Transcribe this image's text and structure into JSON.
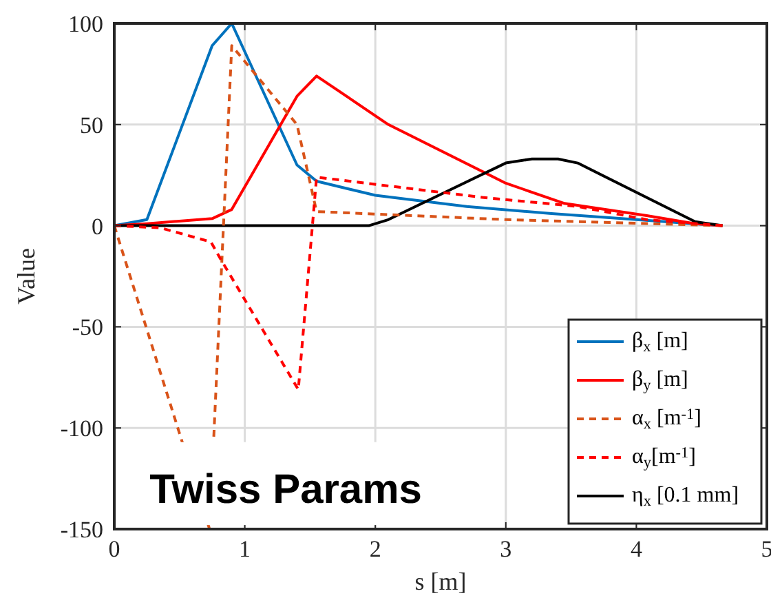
{
  "chart_data": {
    "type": "line",
    "xlabel": "s [m]",
    "ylabel": "Value",
    "annotations": [
      "Twiss Params"
    ],
    "xlim": [
      0,
      5
    ],
    "xticks": [
      0,
      1,
      2,
      3,
      4,
      5
    ],
    "ylim": [
      -150,
      100
    ],
    "yticks": [
      -150,
      -100,
      -50,
      0,
      50,
      100
    ],
    "grid": true,
    "legend": "bottom right",
    "series": [
      {
        "name": "β$_{x}$ [m]",
        "color": "#0072bd",
        "line_style": "solid",
        "x": [
          0,
          0.25,
          0.75,
          0.9,
          1.4,
          1.55,
          2.0,
          2.7,
          3.35,
          4.0,
          4.66
        ],
        "values": [
          0,
          3,
          89,
          100,
          30,
          22,
          15,
          9.5,
          6,
          3,
          0
        ]
      },
      {
        "name": "β$_{y}$ [m]",
        "color": "#ff0000",
        "line_style": "solid",
        "x": [
          0,
          0.25,
          0.75,
          0.9,
          1.4,
          1.55,
          2.1,
          3.0,
          3.45,
          4.08,
          4.45,
          4.66
        ],
        "values": [
          0,
          1,
          3.5,
          8,
          64,
          74,
          50,
          21,
          11,
          5,
          1,
          0
        ]
      },
      {
        "name": "α$_{x}$ [m$^{-1}$]",
        "color": "#d95319",
        "line_style": "dashed",
        "x": [
          0,
          0.73,
          0.9,
          1.4,
          1.55,
          3.0,
          4.66
        ],
        "values": [
          0,
          -150,
          89,
          50,
          7,
          3,
          0
        ]
      },
      {
        "name": "α$_{y}$[m$^{-1}$]",
        "color": "#ff0000",
        "line_style": "dashed",
        "x": [
          0,
          0.35,
          0.74,
          0.81,
          1.41,
          1.55,
          2.82,
          3.55,
          4.08,
          4.66
        ],
        "values": [
          0,
          -1,
          -8,
          -16,
          -81,
          24,
          14,
          9.5,
          3,
          0
        ]
      },
      {
        "name": "η$_{x}$ [0.1 mm]",
        "color": "#000000",
        "line_style": "solid",
        "x": [
          0,
          1.95,
          2.1,
          3.0,
          3.2,
          3.4,
          3.55,
          4.45,
          4.66
        ],
        "values": [
          0,
          0,
          3,
          31,
          33,
          33,
          31,
          2,
          0
        ]
      }
    ]
  }
}
